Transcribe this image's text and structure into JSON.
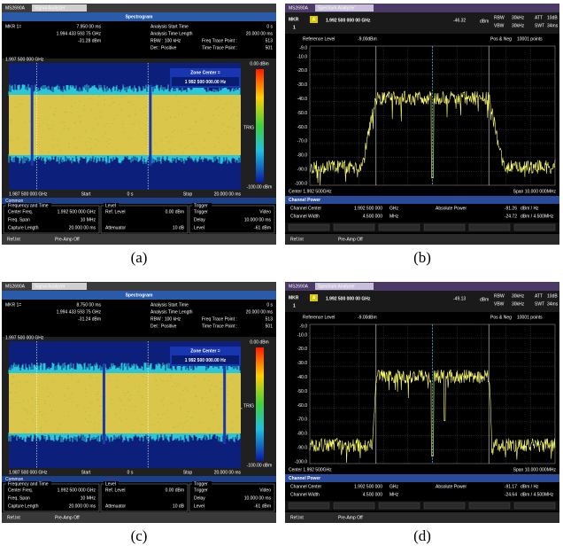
{
  "panels": [
    {
      "type": "spectrogram",
      "caption": "(a)",
      "brand": "MS2690A",
      "window_title": "Signal Analyzer",
      "heading": "Spectrogram",
      "marker": {
        "label": "MKR 1=",
        "time": "7.950 00  ms",
        "freq": "1.994 433 593 75  GHz",
        "level": "-31.28  dBm"
      },
      "analysis": [
        [
          "Analysis Start Time",
          "0 s"
        ],
        [
          "Analysis Time Length",
          "20.000 00 ms"
        ],
        [
          "RBW : 100 kHz",
          "Freq Trace Point :",
          "513"
        ],
        [
          "Det : Positive",
          "Time Trace Point :",
          "501"
        ]
      ],
      "freq_top": "1.997 500 000 GHz",
      "zone_title": "Zone Center =",
      "zone_value": "1 992 500 000.00 Hz",
      "scale": [
        "0.00 dBm",
        "TRIG",
        "-100.00 dBm"
      ],
      "bottom_axis": [
        "1.987 500 000 GHz",
        "Start",
        "0 s",
        "Stop",
        "20.000 00 ms"
      ],
      "tab": "Common",
      "settings": [
        {
          "title": "Frequency and Time",
          "rows": [
            [
              "Center Freq.",
              "1.992 500 000 GHz"
            ],
            [
              "Freq. Span",
              "10 MHz"
            ],
            [
              "Capture Length",
              "20.000 00 ms"
            ]
          ]
        },
        {
          "title": "Level",
          "rows": [
            [
              "Ref. Level",
              "0.00 dBm"
            ],
            [
              "Attenuator",
              "10 dB"
            ]
          ]
        },
        {
          "title": "Trigger",
          "rows": [
            [
              "Trigger",
              "Video"
            ],
            [
              "Delay",
              "10.000 00 ms"
            ],
            [
              "Level",
              "-61 dBm"
            ]
          ]
        }
      ],
      "status": [
        "Ref.Int",
        "Pre-Amp Off"
      ]
    },
    {
      "type": "spectrum",
      "caption": "(b)",
      "brand": "MS2690A",
      "window_title": "Spectrum Analyzer",
      "marker": {
        "label": "MKR",
        "number": "1",
        "trace": "A",
        "freq": "1.992 500 000 00 GHz",
        "level": "-46.32",
        "unit": "dBm"
      },
      "params": [
        [
          "RBW",
          "30kHz",
          "ATT",
          "10dB"
        ],
        [
          "VBW",
          "30kHz",
          "SWT",
          "34ms"
        ]
      ],
      "ref_row": [
        "Reference Level",
        "-9.00dBm",
        "Pos & Neg",
        "10001 points"
      ],
      "y_labels": [
        "-9.0",
        "-10.0",
        "-20.0",
        "-30.0",
        "-40.0",
        "-50.0",
        "-60.0",
        "-70.0",
        "-80.0",
        "-90.0",
        "-100.0"
      ],
      "center": "Center 1.992 500GHz",
      "span": "Span 10.000 000MHz",
      "channel_title": "Channel Power",
      "channel_rows": [
        [
          "Channel Center",
          "1.992 500 000",
          "GHz",
          "Absolute Power",
          "-91.26",
          "dBm / Hz"
        ],
        [
          "Channel Width",
          "4.500 000",
          "MHz",
          "-24.72",
          "dBm / 4.500MHz"
        ]
      ],
      "status": [
        "Ref.Int",
        "Pre-Amp Off"
      ]
    },
    {
      "type": "spectrogram",
      "caption": "(c)",
      "brand": "MS2690A",
      "window_title": "Signal Analyzer",
      "heading": "Spectrogram",
      "marker": {
        "label": "MKR 1=",
        "time": "8.750 00  ms",
        "freq": "1.994 433 593 75  GHz",
        "level": "-31.24  dBm"
      },
      "analysis": [
        [
          "Analysis Start Time",
          "0 s"
        ],
        [
          "Analysis Time Length",
          "20.000 00 ms"
        ],
        [
          "RBW : 100 kHz",
          "Freq Trace Point :",
          "513"
        ],
        [
          "Det : Positive",
          "Time Trace Point :",
          "501"
        ]
      ],
      "freq_top": "1.997 500 000 GHz",
      "zone_title": "Zone Center =",
      "zone_value": "1 992 500 000.00 Hz",
      "scale": [
        "0.00 dBm",
        "TRIG",
        "-100.00 dBm"
      ],
      "bottom_axis": [
        "1.987 500 000 GHz",
        "Start",
        "0 s",
        "Stop",
        "20.000 00 ms"
      ],
      "tab": "Common",
      "settings": [
        {
          "title": "Frequency and Time",
          "rows": [
            [
              "Center Freq.",
              "1.992 500 000 GHz"
            ],
            [
              "Freq. Span",
              "10 MHz"
            ],
            [
              "Capture Length",
              "20.000 00 ms"
            ]
          ]
        },
        {
          "title": "Level",
          "rows": [
            [
              "Ref. Level",
              "0.00 dBm"
            ],
            [
              "Attenuator",
              "10 dB"
            ]
          ]
        },
        {
          "title": "Trigger",
          "rows": [
            [
              "Trigger",
              "Video"
            ],
            [
              "Delay",
              "10.000 00 ms"
            ],
            [
              "Level",
              "-61 dBm"
            ]
          ]
        }
      ],
      "status": [
        "Ref.Int",
        "Pre-Amp Off"
      ]
    },
    {
      "type": "spectrum",
      "caption": "(d)",
      "brand": "MS2690A",
      "window_title": "Spectrum Analyzer",
      "marker": {
        "label": "MKR",
        "number": "1",
        "trace": "A",
        "freq": "1.992 500 000 00 GHz",
        "level": "-49.13",
        "unit": "dBm"
      },
      "params": [
        [
          "RBW",
          "30kHz",
          "ATT",
          "10dB"
        ],
        [
          "VBW",
          "30kHz",
          "SWT",
          "34ms"
        ]
      ],
      "ref_row": [
        "Reference Level",
        "-9.00dBm",
        "Pos & Neg",
        "10001 points"
      ],
      "y_labels": [
        "-9.0",
        "-10.0",
        "-20.0",
        "-30.0",
        "-40.0",
        "-50.0",
        "-60.0",
        "-70.0",
        "-80.0",
        "-90.0",
        "-100.0"
      ],
      "center": "Center 1.992 500GHz",
      "span": "Span 10.000 000MHz",
      "channel_title": "Channel Power",
      "channel_rows": [
        [
          "Channel Center",
          "1.992 500 000",
          "GHz",
          "Absolute Power",
          "-91.17",
          "dBm / Hz"
        ],
        [
          "Channel Width",
          "4.500 000",
          "MHz",
          "-24.64",
          "dBm / 4.500MHz"
        ]
      ],
      "status": [
        "Ref.Int",
        "Pre-Amp Off"
      ]
    }
  ]
}
